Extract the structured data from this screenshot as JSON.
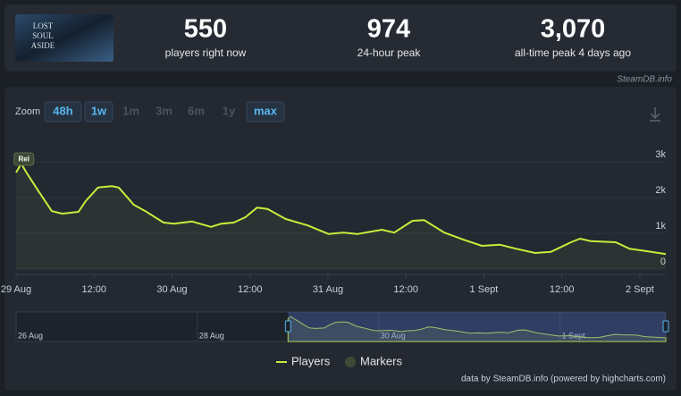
{
  "header": {
    "logo_lines": [
      "LOST",
      "SOUL",
      "ASIDE"
    ],
    "stats": [
      {
        "value": "550",
        "label": "players right now"
      },
      {
        "value": "974",
        "label": "24-hour peak"
      },
      {
        "value": "3,070",
        "label": "all-time peak 4 days ago"
      }
    ],
    "source": "SteamDB.info"
  },
  "zoom": {
    "label": "Zoom",
    "buttons": [
      {
        "label": "48h",
        "enabled": true
      },
      {
        "label": "1w",
        "enabled": true
      },
      {
        "label": "1m",
        "enabled": false
      },
      {
        "label": "3m",
        "enabled": false
      },
      {
        "label": "6m",
        "enabled": false
      },
      {
        "label": "1y",
        "enabled": false
      },
      {
        "label": "max",
        "enabled": true
      }
    ]
  },
  "chart_data": {
    "type": "line",
    "x": [
      0,
      0.8,
      1.6,
      3.3,
      5.5,
      7.1,
      9.6,
      10.7,
      12.6,
      14.7,
      15.8,
      18.1,
      19.9,
      22.7,
      24.3,
      27.1,
      30,
      31.6,
      33.5,
      35.3,
      37.1,
      38.7,
      41.5,
      44.9,
      48.1,
      50.4,
      52.5,
      56.3,
      58.2,
      61,
      62.8,
      65.9,
      68.9,
      71.7,
      74.5,
      76.9,
      79.9,
      82.3,
      85.4,
      86.8,
      88.5,
      92.3,
      94.4,
      97.1,
      100
    ],
    "series": [
      {
        "name": "Players",
        "color": "#c6ee3c",
        "values": [
          2700,
          2950,
          2700,
          2220,
          1620,
          1550,
          1600,
          1900,
          2280,
          2320,
          2280,
          1800,
          1620,
          1300,
          1270,
          1330,
          1180,
          1270,
          1300,
          1450,
          1720,
          1680,
          1400,
          1220,
          980,
          1020,
          980,
          1100,
          1020,
          1350,
          1370,
          1020,
          820,
          650,
          680,
          570,
          450,
          480,
          750,
          850,
          780,
          750,
          570,
          500,
          420
        ]
      }
    ],
    "xlim": [
      0,
      100
    ],
    "xticks": [
      {
        "value": 0,
        "label": "29 Aug"
      },
      {
        "value": 12,
        "label": "12:00"
      },
      {
        "value": 24,
        "label": "30 Aug"
      },
      {
        "value": 36,
        "label": "12:00"
      },
      {
        "value": 48,
        "label": "31 Aug"
      },
      {
        "value": 60,
        "label": "12:00"
      },
      {
        "value": 72,
        "label": "1 Sept"
      },
      {
        "value": 84,
        "label": "12:00"
      },
      {
        "value": 96,
        "label": "2 Sept"
      }
    ],
    "ylim": [
      0,
      3500
    ],
    "yticks": [
      0,
      {
        "value": 1000,
        "label": "1k"
      },
      {
        "value": 2000,
        "label": "2k"
      },
      {
        "value": 3000,
        "label": "3k"
      }
    ],
    "grid": true,
    "markers": [
      {
        "x": 1.2,
        "label": "Rel"
      }
    ],
    "markers_label": "Markers",
    "marker_color": "#3d4a35",
    "navigator": {
      "xlim": [
        -72,
        100
      ],
      "ylim": [
        0,
        3500
      ],
      "xticks": [
        {
          "value": -72,
          "label": "26 Aug"
        },
        {
          "value": -24,
          "label": "28 Aug"
        },
        {
          "value": 24,
          "label": "30 Aug"
        },
        {
          "value": 72,
          "label": "1 Sept"
        }
      ]
    },
    "credit": "data by SteamDB.info (powered by highcharts.com)"
  }
}
